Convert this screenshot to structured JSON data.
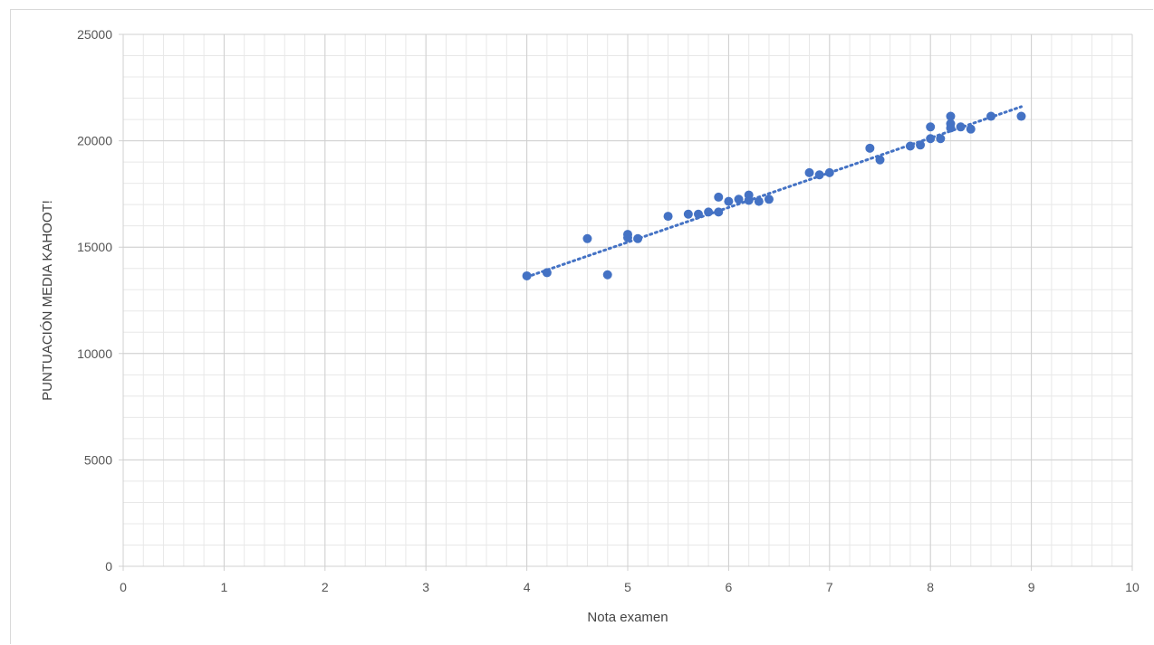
{
  "chart_data": {
    "type": "scatter",
    "title": "",
    "xlabel": "Nota examen",
    "ylabel": "PUNTUACIÓN MEDIA KAHOOT!",
    "xlim": [
      0,
      10
    ],
    "ylim": [
      0,
      25000
    ],
    "x_ticks": [
      0,
      1,
      2,
      3,
      4,
      5,
      6,
      7,
      8,
      9,
      10
    ],
    "y_ticks": [
      0,
      5000,
      10000,
      15000,
      20000,
      25000
    ],
    "x_minor_step": 0.2,
    "y_minor_step": 1000,
    "grid": true,
    "legend": "none",
    "colors": {
      "points": "#4472c4",
      "trendline": "#4472c4",
      "major_grid": "#d0d0d0",
      "minor_grid": "#e8e8e8"
    },
    "series": [
      {
        "x": [
          4.0,
          4.2,
          4.6,
          4.8,
          5.0,
          5.0,
          5.1,
          5.4,
          5.6,
          5.7,
          5.8,
          5.9,
          5.9,
          6.0,
          6.1,
          6.2,
          6.2,
          6.3,
          6.4,
          6.8,
          6.9,
          7.0,
          7.4,
          7.5,
          7.8,
          7.9,
          8.0,
          8.0,
          8.1,
          8.2,
          8.2,
          8.2,
          8.3,
          8.4,
          8.6,
          8.9
        ],
        "y": [
          13650,
          13800,
          15400,
          13700,
          15600,
          15450,
          15400,
          16450,
          16550,
          16550,
          16650,
          16650,
          17350,
          17150,
          17250,
          17200,
          17450,
          17150,
          17250,
          18500,
          18400,
          18500,
          19650,
          19100,
          19750,
          19800,
          20100,
          20650,
          20100,
          20600,
          20800,
          21150,
          20650,
          20550,
          21150,
          21150
        ]
      }
    ],
    "trendline": {
      "type": "linear",
      "x": [
        4.0,
        8.9
      ],
      "y": [
        13600,
        21600
      ]
    }
  }
}
